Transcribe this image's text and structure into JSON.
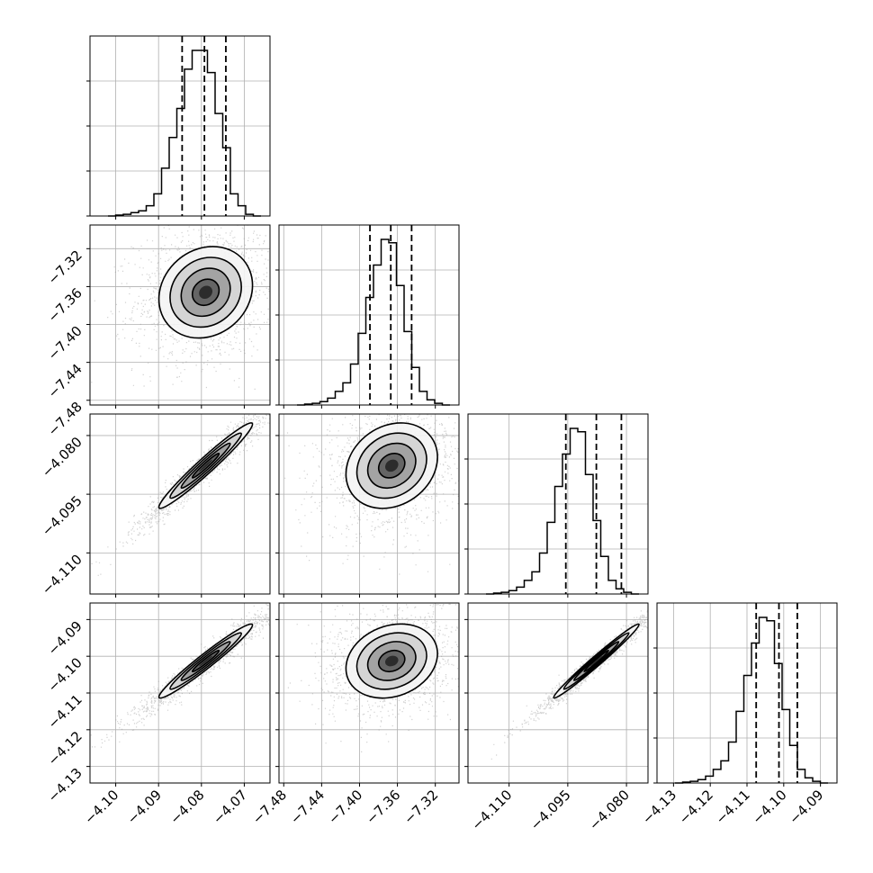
{
  "chart_data": {
    "type": "corner",
    "parameters": [
      {
        "range": [
          -4.106,
          -4.064
        ],
        "ticks": [
          "−4.10",
          "−4.09",
          "−4.08",
          "−4.07"
        ],
        "tick_values": [
          -4.1,
          -4.09,
          -4.08,
          -4.07
        ],
        "quantiles": [
          -4.0845,
          -4.0793,
          -4.0743
        ],
        "median": -4.0793,
        "hist": [
          0,
          0.5,
          1,
          2,
          3,
          6,
          13,
          28,
          46,
          63,
          86,
          97,
          97,
          84,
          60,
          40,
          13,
          6,
          1,
          0
        ]
      },
      {
        "range": [
          -7.485,
          -7.295
        ],
        "ticks": [
          "−7.48",
          "−7.44",
          "−7.40",
          "−7.36",
          "−7.32"
        ],
        "tick_values": [
          -7.48,
          -7.44,
          -7.4,
          -7.36,
          -7.32
        ],
        "quantiles": [
          -7.389,
          -7.367,
          -7.345
        ],
        "median": -7.367,
        "hist": [
          0,
          0.5,
          1,
          2,
          4,
          8,
          13,
          24,
          42,
          63,
          82,
          97,
          95,
          70,
          43,
          22,
          8,
          3,
          1,
          0
        ]
      },
      {
        "range": [
          -4.1205,
          -4.0745
        ],
        "ticks": [
          "−4.080",
          "−4.095",
          "−4.110"
        ],
        "tick_values": [
          -4.08,
          -4.095,
          -4.11
        ],
        "quantiles": [
          -4.0955,
          -4.0877,
          -4.0813
        ],
        "median": -4.0877,
        "hist": [
          0,
          0.5,
          1,
          2,
          4,
          8,
          13,
          24,
          42,
          63,
          82,
          97,
          95,
          70,
          43,
          22,
          8,
          3,
          1,
          0
        ]
      },
      {
        "range": [
          -4.1345,
          -4.0855
        ],
        "ticks": [
          "−4.13",
          "−4.12",
          "−4.11",
          "−4.10",
          "−4.09"
        ],
        "tick_values": [
          -4.13,
          -4.12,
          -4.11,
          -4.1,
          -4.09
        ],
        "quantiles": [
          -4.1075,
          -4.1013,
          -4.0963
        ],
        "median": -4.1013,
        "hist": [
          0,
          0.5,
          1,
          2,
          4,
          8,
          13,
          24,
          42,
          63,
          82,
          97,
          95,
          70,
          43,
          22,
          8,
          3,
          1,
          0
        ]
      }
    ],
    "pairs": [
      {
        "row": 1,
        "col": 0,
        "center": [
          -4.079,
          -7.366
        ],
        "sigma": [
          0.0052,
          0.023
        ],
        "corr": 0.15
      },
      {
        "row": 2,
        "col": 0,
        "center": [
          -4.079,
          -4.0877
        ],
        "sigma": [
          0.0052,
          0.0052
        ],
        "corr": 0.97
      },
      {
        "row": 2,
        "col": 1,
        "center": [
          -7.366,
          -4.0877
        ],
        "sigma": [
          0.023,
          0.0052
        ],
        "corr": 0.2
      },
      {
        "row": 3,
        "col": 0,
        "center": [
          -4.079,
          -4.1013
        ],
        "sigma": [
          0.0052,
          0.0048
        ],
        "corr": 0.97
      },
      {
        "row": 3,
        "col": 1,
        "center": [
          -7.366,
          -4.1013
        ],
        "sigma": [
          0.023,
          0.0048
        ],
        "corr": 0.2
      },
      {
        "row": 3,
        "col": 2,
        "center": [
          -4.0877,
          -4.1013
        ],
        "sigma": [
          0.0052,
          0.0048
        ],
        "corr": 0.985
      }
    ],
    "grid": true,
    "line_color": "#000000",
    "point_color": "#9a9a9a",
    "density_colors": [
      "#f4f4f4",
      "#cfcfcf",
      "#9a9a9a",
      "#5a5a5a",
      "#222222"
    ]
  }
}
